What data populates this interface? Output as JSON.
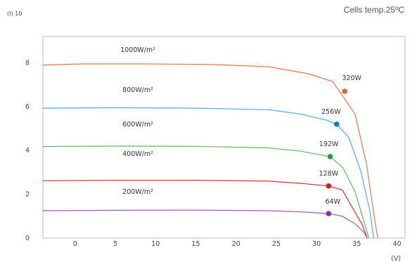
{
  "chart_data": {
    "type": "line",
    "annotation": "Cells temp.25ºC",
    "y_axis_top_label": "(I) 10",
    "x_unit": "(V)",
    "xlim": [
      -4,
      41
    ],
    "ylim": [
      0,
      9.2
    ],
    "x_ticks": [
      0,
      5,
      10,
      15,
      20,
      25,
      30,
      35,
      40
    ],
    "y_ticks": [
      {
        "value": 8,
        "label": "8"
      },
      {
        "value": 6,
        "label": "6"
      },
      {
        "value": 4,
        "label": "4"
      },
      {
        "value": 2,
        "label": "2"
      },
      {
        "value": 0,
        "label": "0"
      }
    ],
    "series": [
      {
        "name": "1000W/m²",
        "color": "#e8744a",
        "points": [
          [
            -4,
            7.9
          ],
          [
            1,
            7.95
          ],
          [
            9,
            7.95
          ],
          [
            17,
            7.92
          ],
          [
            24,
            7.82
          ],
          [
            29,
            7.5
          ],
          [
            32,
            7.15
          ],
          [
            34.8,
            5.65
          ],
          [
            36.2,
            3.4
          ],
          [
            37.2,
            0.9
          ],
          [
            37.6,
            0
          ]
        ],
        "marker": {
          "x": 33.5,
          "y": 6.7,
          "label": "320W",
          "color": "#f0622d"
        }
      },
      {
        "name": "800W/m²",
        "color": "#4aaee0",
        "points": [
          [
            -4,
            5.93
          ],
          [
            5,
            5.95
          ],
          [
            15,
            5.93
          ],
          [
            24,
            5.86
          ],
          [
            28,
            5.66
          ],
          [
            31.3,
            5.38
          ],
          [
            32.5,
            5.2
          ],
          [
            34,
            4.6
          ],
          [
            35.5,
            3.05
          ],
          [
            36.6,
            1.3
          ],
          [
            37.1,
            0
          ]
        ],
        "marker": {
          "x": 32.5,
          "y": 5.2,
          "label": "256W",
          "color": "#1a7cc4"
        }
      },
      {
        "name": "600W/m²",
        "color": "#5db85b",
        "points": [
          [
            -4,
            4.18
          ],
          [
            5,
            4.2
          ],
          [
            15,
            4.19
          ],
          [
            24,
            4.12
          ],
          [
            28,
            3.97
          ],
          [
            31.7,
            3.72
          ],
          [
            33.3,
            3.2
          ],
          [
            34.8,
            2.1
          ],
          [
            35.7,
            1.0
          ],
          [
            36.5,
            0
          ]
        ],
        "marker": {
          "x": 31.7,
          "y": 3.72,
          "label": "192W",
          "color": "#2e9a3a"
        }
      },
      {
        "name": "400W/m²",
        "color": "#e02e2e",
        "points": [
          [
            -4,
            2.62
          ],
          [
            5,
            2.64
          ],
          [
            15,
            2.64
          ],
          [
            24,
            2.6
          ],
          [
            28,
            2.5
          ],
          [
            31.5,
            2.38
          ],
          [
            33.2,
            2.2
          ],
          [
            34.6,
            1.3
          ],
          [
            35.7,
            0.6
          ],
          [
            36.3,
            0
          ]
        ],
        "marker": {
          "x": 31.5,
          "y": 2.38,
          "label": "128W",
          "color": "#e01b1b"
        }
      },
      {
        "name": "200W/m²",
        "color": "#9b59b6",
        "points": [
          [
            -4,
            1.25
          ],
          [
            5,
            1.27
          ],
          [
            15,
            1.28
          ],
          [
            24,
            1.25
          ],
          [
            28,
            1.2
          ],
          [
            31.5,
            1.12
          ],
          [
            33.2,
            1.0
          ],
          [
            34.8,
            0.65
          ],
          [
            35.8,
            0.3
          ],
          [
            36.3,
            0
          ]
        ],
        "marker": {
          "x": 31.5,
          "y": 1.12,
          "label": "64W",
          "color": "#8e2fa3"
        }
      }
    ]
  }
}
